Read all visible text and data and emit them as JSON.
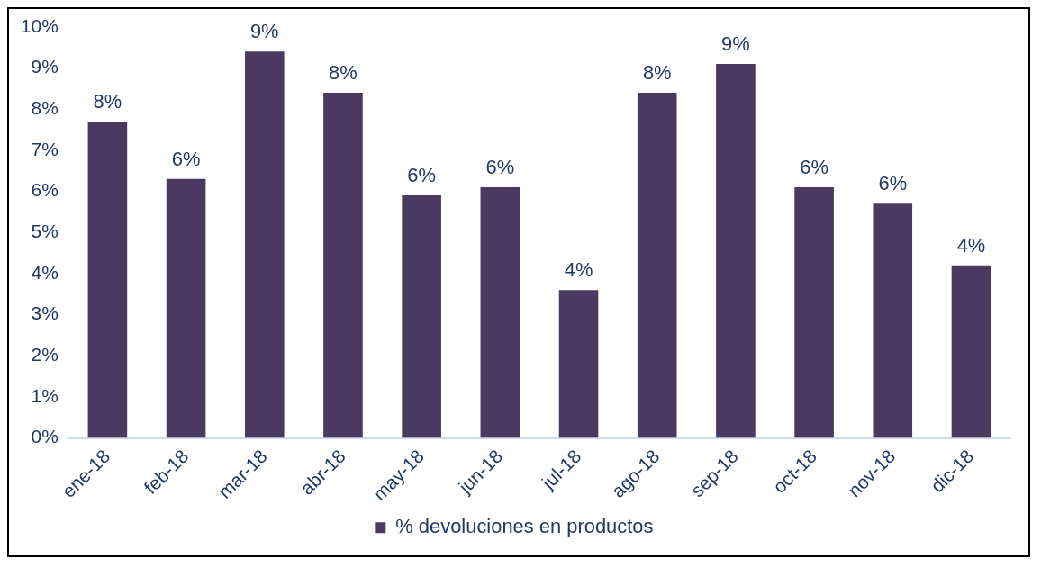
{
  "chart_data": {
    "type": "bar",
    "categories": [
      "ene-18",
      "feb-18",
      "mar-18",
      "abr-18",
      "may-18",
      "jun-18",
      "jul-18",
      "ago-18",
      "sep-18",
      "oct-18",
      "nov-18",
      "dic-18"
    ],
    "series": [
      {
        "name": "% devoluciones en productos",
        "color": "#4a3a62",
        "values": [
          7.7,
          6.3,
          9.4,
          8.4,
          5.9,
          6.1,
          3.6,
          8.4,
          9.1,
          6.1,
          5.7,
          4.2
        ],
        "value_labels": [
          "8%",
          "6%",
          "9%",
          "8%",
          "6%",
          "6%",
          "4%",
          "8%",
          "9%",
          "6%",
          "6%",
          "4%"
        ]
      }
    ],
    "ylim": [
      0,
      10
    ],
    "yticks": [
      {
        "value": 0,
        "label": "0%"
      },
      {
        "value": 1,
        "label": "1%"
      },
      {
        "value": 2,
        "label": "2%"
      },
      {
        "value": 3,
        "label": "3%"
      },
      {
        "value": 4,
        "label": "4%"
      },
      {
        "value": 5,
        "label": "5%"
      },
      {
        "value": 6,
        "label": "6%"
      },
      {
        "value": 7,
        "label": "7%"
      },
      {
        "value": 8,
        "label": "8%"
      },
      {
        "value": 9,
        "label": "9%"
      },
      {
        "value": 10,
        "label": "10%"
      }
    ],
    "grid": false,
    "legend": "bottom"
  }
}
